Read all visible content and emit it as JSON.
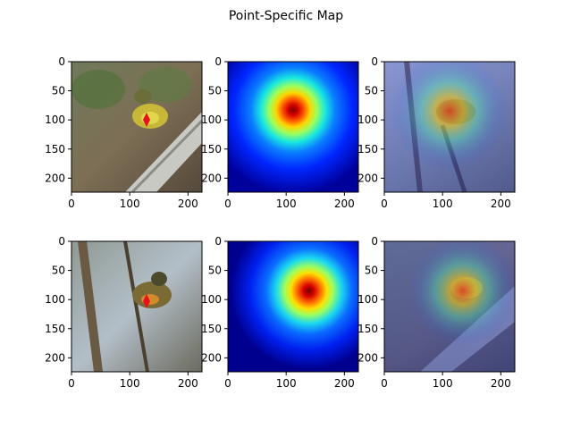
{
  "figure": {
    "title": "Point-Specific Map"
  },
  "chart_data": {
    "type": "heatmap",
    "title": "Point-Specific Map",
    "layout": "2x3 grid of image panels",
    "axes": {
      "xlim": [
        0,
        224
      ],
      "ylim": [
        224,
        0
      ],
      "xticks": [
        0,
        100,
        200
      ],
      "xtick_labels": [
        "0",
        "100",
        "200"
      ],
      "yticks": [
        0,
        50,
        100,
        150,
        200
      ],
      "ytick_labels": [
        "0",
        "50",
        "100",
        "150",
        "200"
      ]
    },
    "rows": [
      {
        "query_point": [
          130,
          100
        ],
        "heat_peak": [
          112,
          82
        ],
        "panels": [
          "photo with query point",
          "jet heatmap",
          "heatmap overlay on second photo"
        ]
      },
      {
        "query_point": [
          130,
          102
        ],
        "heat_peak": [
          140,
          84
        ],
        "panels": [
          "photo with query point",
          "jet heatmap",
          "heatmap overlay on second photo"
        ]
      }
    ],
    "colormap": "jet",
    "marker": {
      "shape": "diamond",
      "color": "#e8111e"
    }
  }
}
